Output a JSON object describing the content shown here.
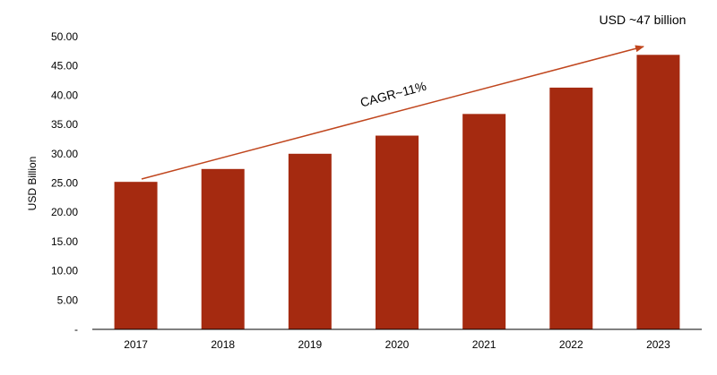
{
  "chart_data": {
    "type": "bar",
    "title": "",
    "xlabel": "",
    "ylabel": "USD Billion",
    "categories": [
      "2017",
      "2018",
      "2019",
      "2020",
      "2021",
      "2022",
      "2023"
    ],
    "values": [
      25.2,
      27.4,
      30.0,
      33.1,
      36.8,
      41.3,
      46.9
    ],
    "ylim": [
      0,
      50
    ],
    "ytick_labels": [
      "-",
      "5.00",
      "10.00",
      "15.00",
      "20.00",
      "25.00",
      "30.00",
      "35.00",
      "40.00",
      "45.00",
      "50.00"
    ],
    "grid": false,
    "colors": {
      "bar": "#A52A10",
      "arrow": "#C0461E",
      "axis": "#000000"
    },
    "annotations": {
      "cagr": "CAGR~11%",
      "end_value": "USD ~47 billion"
    }
  }
}
